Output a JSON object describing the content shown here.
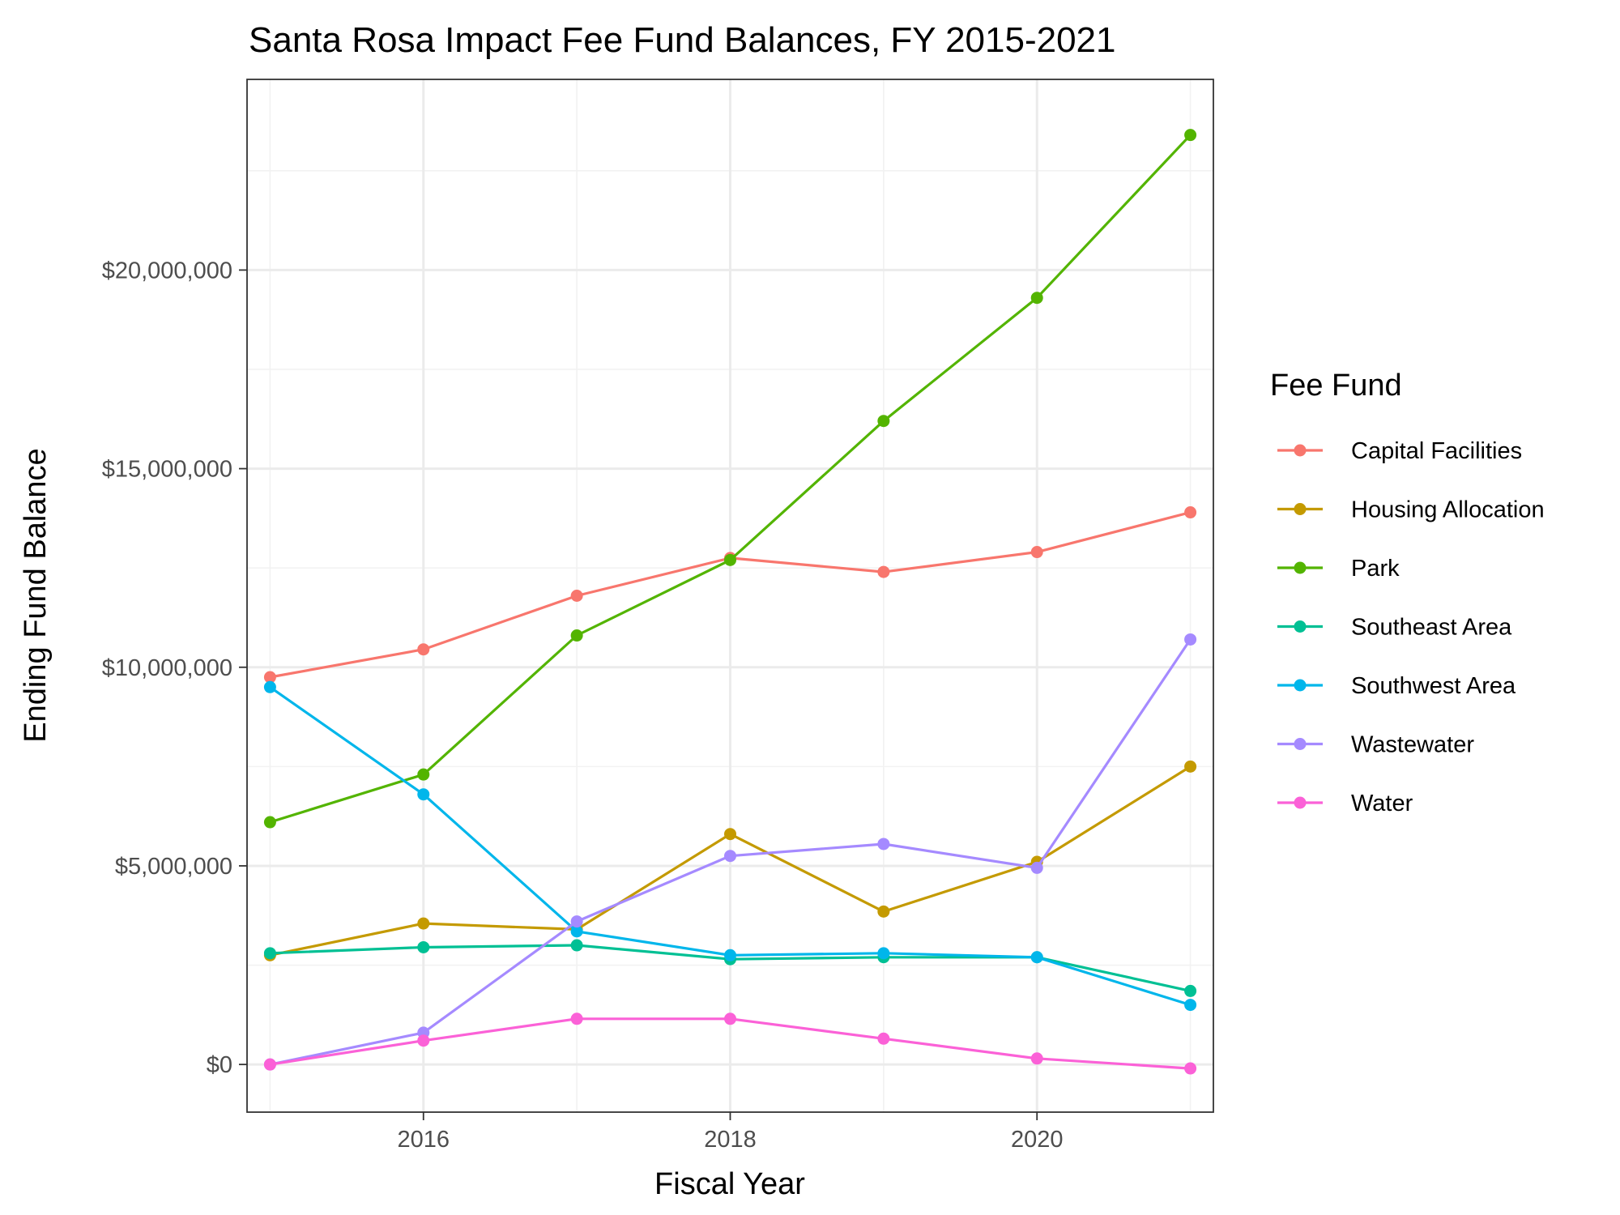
{
  "chart_data": {
    "type": "line",
    "title": "Santa Rosa Impact Fee Fund Balances, FY 2015-2021",
    "xlabel": "Fiscal Year",
    "ylabel": "Ending Fund Balance",
    "legend_title": "Fee Fund",
    "legend_position": "right",
    "grid": true,
    "x": [
      2015,
      2016,
      2017,
      2018,
      2019,
      2020,
      2021
    ],
    "xlim": [
      2014.85,
      2021.15
    ],
    "ylim": [
      -1200000,
      24800000
    ],
    "x_ticks": [
      2016,
      2018,
      2020
    ],
    "x_tick_labels": [
      "2016",
      "2018",
      "2020"
    ],
    "y_ticks": [
      0,
      5000000,
      10000000,
      15000000,
      20000000
    ],
    "y_tick_labels": [
      "$0",
      "$5,000,000",
      "$10,000,000",
      "$15,000,000",
      "$20,000,000"
    ],
    "series": [
      {
        "name": "Capital Facilities",
        "color": "#F8766D",
        "values": [
          9750000,
          10450000,
          11800000,
          12750000,
          12400000,
          12900000,
          13900000
        ]
      },
      {
        "name": "Housing Allocation",
        "color": "#C49A00",
        "values": [
          2750000,
          3550000,
          3400000,
          5800000,
          3850000,
          5100000,
          7500000
        ]
      },
      {
        "name": "Park",
        "color": "#53B400",
        "values": [
          6100000,
          7300000,
          10800000,
          12700000,
          16200000,
          19300000,
          23400000
        ]
      },
      {
        "name": "Southeast Area",
        "color": "#00C094",
        "values": [
          2800000,
          2950000,
          3000000,
          2650000,
          2700000,
          2700000,
          1850000
        ]
      },
      {
        "name": "Southwest Area",
        "color": "#00B6EB",
        "values": [
          9500000,
          6800000,
          3350000,
          2750000,
          2800000,
          2700000,
          1500000
        ]
      },
      {
        "name": "Wastewater",
        "color": "#A58AFF",
        "values": [
          0,
          800000,
          3600000,
          5250000,
          5550000,
          4950000,
          10700000
        ]
      },
      {
        "name": "Water",
        "color": "#FB61D7",
        "values": [
          0,
          600000,
          1150000,
          1150000,
          650000,
          150000,
          -100000
        ]
      }
    ]
  }
}
